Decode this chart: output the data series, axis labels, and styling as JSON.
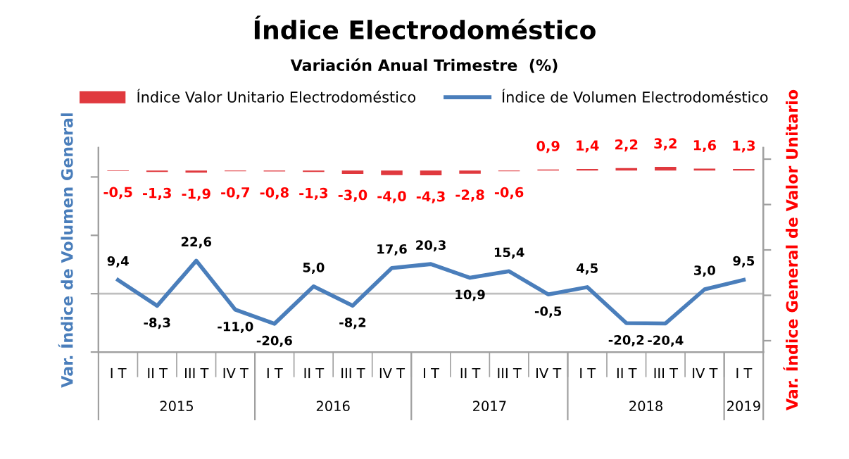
{
  "chart_data": {
    "type": "bar",
    "title": "Índice Electrodoméstico",
    "subtitle": "Variación Anual Trimestre  (%)",
    "ylabel": "Var. Índice de Volumen General",
    "y2label": "Var. Índice General de Valor Unitario",
    "categories": [
      "I T",
      "II T",
      "III T",
      "IV T",
      "I T",
      "II T",
      "III T",
      "IV T",
      "I T",
      "II T",
      "III T",
      "IV T",
      "I T",
      "II T",
      "III T",
      "IV T",
      "I T"
    ],
    "series": [
      {
        "name": "Índice Valor Unitario Electrodoméstico",
        "axis": "y2",
        "color": "#e0393e",
        "values": [
          -0.5,
          -1.3,
          -1.9,
          -0.7,
          -0.8,
          -1.3,
          -3.0,
          -4.0,
          -4.3,
          -2.8,
          -0.6,
          0.9,
          1.4,
          2.2,
          3.2,
          1.6,
          1.3
        ],
        "value_labels": [
          "-0,5",
          "-1,3",
          "-1,9",
          "-0,7",
          "-0,8",
          "-1,3",
          "-3,0",
          "-4,0",
          "-4,3",
          "-2,8",
          "-0,6",
          "0,9",
          "1,4",
          "2,2",
          "3,2",
          "1,6",
          "1,3"
        ]
      },
      {
        "name": "Índice de Volumen Electrodoméstico",
        "type": "line",
        "color": "#4a7ebb",
        "values": [
          9.4,
          -8.3,
          22.6,
          -11.0,
          -20.6,
          5.0,
          -8.2,
          17.6,
          20.3,
          10.9,
          15.4,
          -0.5,
          4.5,
          -20.2,
          -20.4,
          3.0,
          9.5
        ],
        "value_labels": [
          "9,4",
          "-8,3",
          "22,6",
          "-11,0",
          "-20,6",
          "5,0",
          "-8,2",
          "17,6",
          "20,3",
          "10,9",
          "15,4",
          "-0,5",
          "4,5",
          "-20,2",
          "-20,4",
          "3,0",
          "9,5"
        ]
      }
    ],
    "annotations": [
      "2015",
      "2016",
      "2017",
      "2018",
      "2019"
    ],
    "ylim": [
      -40,
      100
    ],
    "yticks": [
      {
        "value": -40,
        "label": null
      },
      {
        "value": 0,
        "label": null
      },
      {
        "value": 40,
        "label": null
      },
      {
        "value": 80,
        "label": null
      }
    ],
    "y2lim": [
      -160,
      20
    ],
    "y2ticks": [
      {
        "value": -150,
        "label": null
      },
      {
        "value": -110,
        "label": null
      },
      {
        "value": -70,
        "label": null
      },
      {
        "value": -30,
        "label": null
      },
      {
        "value": 10,
        "label": null
      }
    ],
    "ref_lines": [
      {
        "axis": "y",
        "value": 0,
        "color": "#bfbfbf"
      }
    ],
    "legend": "top",
    "grid": false,
    "marker": "none",
    "line_style": "solid"
  }
}
